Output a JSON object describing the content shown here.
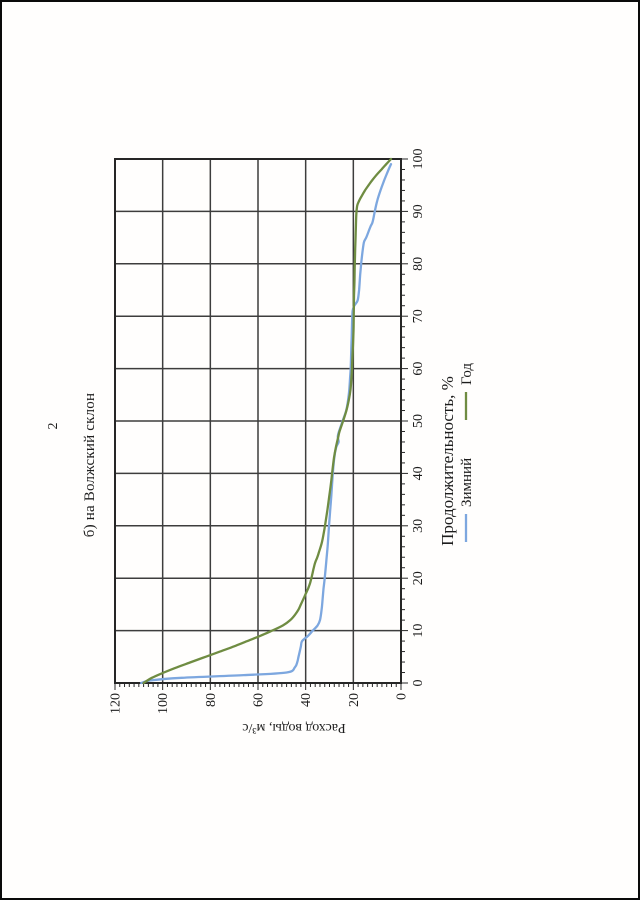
{
  "page": {
    "number": "2"
  },
  "chart_data": {
    "type": "line",
    "title": "б) на Волжский склон",
    "xlabel": "Продолжительность, %",
    "ylabel": "Расход воды, м³/с",
    "xlim": [
      0,
      100
    ],
    "ylim": [
      0,
      120
    ],
    "x_major_ticks": [
      0,
      10,
      20,
      30,
      40,
      50,
      60,
      70,
      80,
      90,
      100
    ],
    "y_major_ticks": [
      0,
      20,
      40,
      60,
      80,
      100,
      120
    ],
    "x_minor_step": 2,
    "y_minor_step": 2,
    "grid": true,
    "grid_color": "#3d3d3d",
    "frame_color": "#262626",
    "text_color": "#1c1c1c",
    "legend_position": "bottom",
    "orientation": "rotated-90-ccw-on-portrait-page",
    "series": [
      {
        "name": "Зимний",
        "color": "#7da7df",
        "points": [
          [
            0,
            109
          ],
          [
            0.5,
            105
          ],
          [
            1,
            92
          ],
          [
            1.5,
            66
          ],
          [
            2,
            48
          ],
          [
            3,
            44.5
          ],
          [
            4,
            43.5
          ],
          [
            5,
            43
          ],
          [
            6,
            42.5
          ],
          [
            7,
            42
          ],
          [
            8,
            41.5
          ],
          [
            9,
            39
          ],
          [
            10,
            37
          ],
          [
            11,
            35
          ],
          [
            12,
            34
          ],
          [
            14,
            33.3
          ],
          [
            16,
            32.9
          ],
          [
            18,
            32.5
          ],
          [
            20,
            32
          ],
          [
            23,
            31.4
          ],
          [
            26,
            30.8
          ],
          [
            30,
            30.2
          ],
          [
            33,
            29.7
          ],
          [
            36,
            29.2
          ],
          [
            40,
            28.6
          ],
          [
            43,
            28
          ],
          [
            45,
            27.2
          ],
          [
            46,
            26.2
          ],
          [
            47,
            26.5
          ],
          [
            48,
            26
          ],
          [
            50,
            24.5
          ],
          [
            52,
            23
          ],
          [
            54,
            22.2
          ],
          [
            56,
            21.7
          ],
          [
            58,
            21.4
          ],
          [
            60,
            21.1
          ],
          [
            63,
            20.9
          ],
          [
            66,
            20.7
          ],
          [
            69,
            20.5
          ],
          [
            71,
            20.3
          ],
          [
            72,
            19.6
          ],
          [
            73,
            18.2
          ],
          [
            75,
            17.6
          ],
          [
            78,
            17.1
          ],
          [
            81,
            16.5
          ],
          [
            84,
            15.6
          ],
          [
            85,
            14.6
          ],
          [
            87,
            12.9
          ],
          [
            88,
            11.9
          ],
          [
            90,
            11
          ],
          [
            92,
            10
          ],
          [
            94,
            8.6
          ],
          [
            96,
            7
          ],
          [
            98,
            5.2
          ],
          [
            99,
            4.2
          ]
        ]
      },
      {
        "name": "Год",
        "color": "#6f8c42",
        "points": [
          [
            0,
            108
          ],
          [
            1,
            104.5
          ],
          [
            2,
            99.5
          ],
          [
            3,
            94
          ],
          [
            4,
            88
          ],
          [
            5,
            82
          ],
          [
            6,
            76
          ],
          [
            7,
            70
          ],
          [
            8,
            64.5
          ],
          [
            9,
            59
          ],
          [
            10,
            54
          ],
          [
            11,
            49.5
          ],
          [
            12,
            46.5
          ],
          [
            13,
            44.5
          ],
          [
            14,
            43
          ],
          [
            15,
            42
          ],
          [
            16,
            41
          ],
          [
            17,
            40
          ],
          [
            18,
            39
          ],
          [
            19,
            38.2
          ],
          [
            20,
            37.6
          ],
          [
            21,
            37.1
          ],
          [
            22,
            36.6
          ],
          [
            23,
            36
          ],
          [
            24,
            35.1
          ],
          [
            25,
            34.4
          ],
          [
            27,
            33.1
          ],
          [
            30,
            31.9
          ],
          [
            33,
            30.9
          ],
          [
            35,
            30.3
          ],
          [
            38,
            29.4
          ],
          [
            40,
            28.9
          ],
          [
            43,
            28.1
          ],
          [
            45,
            27.3
          ],
          [
            47,
            26.3
          ],
          [
            48,
            25.8
          ],
          [
            50,
            24.3
          ],
          [
            52,
            22.9
          ],
          [
            54,
            21.9
          ],
          [
            56,
            21.2
          ],
          [
            59,
            20.7
          ],
          [
            62,
            20.4
          ],
          [
            65,
            20.1
          ],
          [
            68,
            19.9
          ],
          [
            71,
            19.8
          ],
          [
            74,
            19.7
          ],
          [
            77,
            19.5
          ],
          [
            80,
            19.4
          ],
          [
            83,
            19.2
          ],
          [
            86,
            19
          ],
          [
            89,
            18.8
          ],
          [
            91,
            18.4
          ],
          [
            92,
            17.6
          ],
          [
            93,
            16.4
          ],
          [
            94,
            15.1
          ],
          [
            95,
            13.6
          ],
          [
            96,
            12
          ],
          [
            97,
            10.2
          ],
          [
            98,
            8.2
          ],
          [
            99,
            6.2
          ],
          [
            100,
            4.2
          ]
        ]
      }
    ]
  }
}
